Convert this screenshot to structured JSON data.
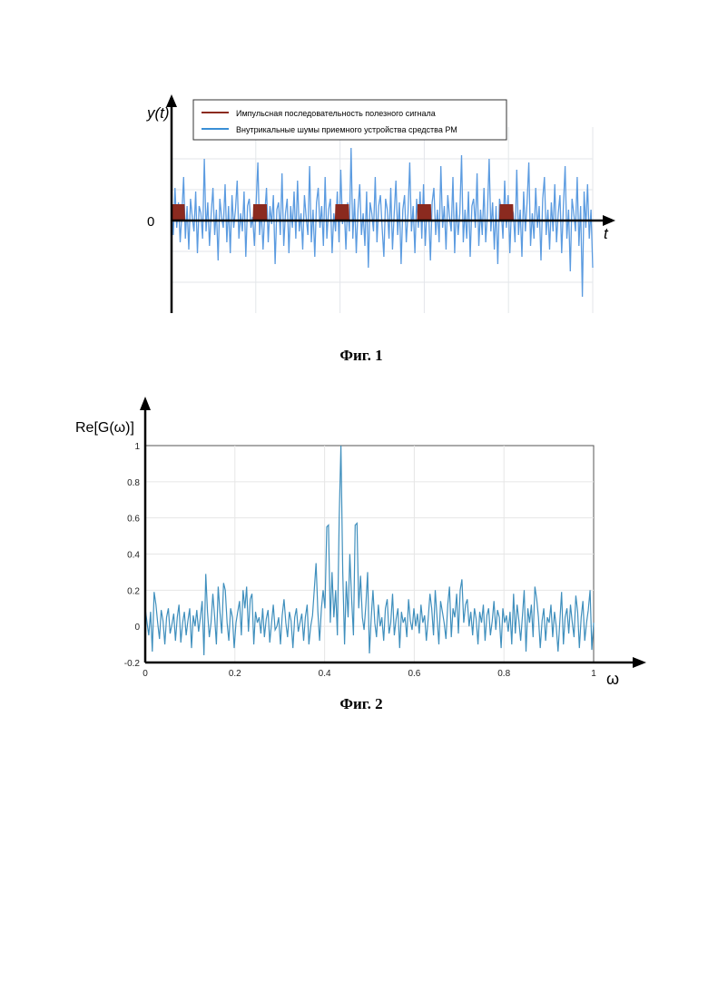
{
  "figure1": {
    "caption": "Фиг. 1",
    "y_axis_label": "y(t)",
    "x_axis_label": "t",
    "zero_label": "0",
    "legend": [
      {
        "label": "Импульсная последовательность полезного сигнала",
        "color": "#8b2a1f"
      },
      {
        "label": "Внутрикальные шумы приемного устройства средства РМ",
        "color": "#3a8fd6"
      }
    ]
  },
  "figure2": {
    "caption": "Фиг. 2",
    "y_axis_label": "Re[G(ω)]",
    "x_axis_label": "ω"
  },
  "chart_data": [
    {
      "type": "line",
      "title": "",
      "xlabel": "t",
      "ylabel": "y(t)",
      "grid": true,
      "legend_position": "top",
      "series": [
        {
          "name": "Внутрикальные шумы приемного устройства средства РМ",
          "color": "#5b9be0",
          "values": [
            0.3,
            -0.4,
            0.9,
            -0.2,
            0.5,
            -0.6,
            0.2,
            1.2,
            -0.5,
            0.4,
            -0.8,
            0.6,
            0.1,
            -0.3,
            0.8,
            -0.9,
            0.4,
            0.2,
            -0.5,
            1.7,
            -0.3,
            0.5,
            -0.7,
            0.2,
            0.9,
            -0.4,
            0.3,
            -1.1,
            0.6,
            0.1,
            -0.2,
            1.0,
            -0.6,
            0.4,
            -0.9,
            0.7,
            -0.2,
            0.3,
            1.1,
            -0.5,
            0.2,
            -0.3,
            0.8,
            -1.0,
            0.4,
            0.6,
            -0.2,
            0.1,
            -0.7,
            0.5,
            1.6,
            -0.4,
            0.3,
            -0.8,
            0.2,
            0.9,
            -0.6,
            0.4,
            -0.1,
            0.7,
            -1.2,
            0.3,
            0.5,
            -0.4,
            1.3,
            -0.7,
            0.2,
            0.6,
            -0.9,
            0.4,
            -0.2,
            0.8,
            -0.5,
            1.1,
            -0.3,
            0.2,
            -0.8,
            0.7,
            0.1,
            -0.4,
            1.5,
            -0.6,
            0.3,
            -1.0,
            0.5,
            0.9,
            -0.2,
            0.4,
            -0.7,
            1.2,
            -0.5,
            0.3,
            0.6,
            -0.9,
            0.2,
            -0.3,
            0.8,
            -0.6,
            1.4,
            -0.1,
            0.4,
            -0.8,
            0.5,
            -0.3,
            2.0,
            -0.5,
            0.6,
            -0.9,
            0.3,
            1.0,
            -0.4,
            0.2,
            -0.7,
            0.8,
            -1.3,
            0.5,
            0.2,
            -0.3,
            1.2,
            -0.6,
            0.4,
            0.7,
            -0.2,
            -1.0,
            0.6,
            0.3,
            -0.5,
            0.9,
            -0.8,
            0.2,
            1.1,
            -0.4,
            0.5,
            -1.2,
            0.3,
            0.7,
            -0.6,
            0.2,
            1.6,
            -0.3,
            0.4,
            -0.9,
            0.6,
            -0.2,
            0.8,
            -0.5,
            1.0,
            -0.7,
            0.3,
            0.2,
            -1.1,
            0.5,
            0.9,
            -0.4,
            0.3,
            -0.6,
            1.5,
            -0.2,
            0.4,
            -0.8,
            0.7,
            0.1,
            -0.3,
            1.2,
            -0.9,
            0.5,
            -0.4,
            0.2,
            1.8,
            -0.6,
            0.3,
            -0.5,
            0.8,
            -1.0,
            0.4,
            0.6,
            -0.2,
            1.3,
            -0.7,
            0.3,
            -0.4,
            0.9,
            -0.6,
            0.2,
            1.7,
            -0.3,
            0.5,
            -0.8,
            0.4,
            -1.2,
            0.6,
            0.3,
            -0.5,
            1.1,
            -0.2,
            0.7,
            -0.9,
            0.4,
            0.2,
            -0.6,
            1.4,
            -0.4,
            0.3,
            -1.0,
            0.8,
            -0.3,
            0.5,
            1.6,
            -0.7,
            0.2,
            -0.5,
            0.9,
            -0.2,
            0.4,
            -1.1,
            0.6,
            1.2,
            -0.4,
            0.3,
            -0.8,
            0.5,
            -0.3,
            1.0,
            -0.6,
            0.2,
            0.7,
            -0.9,
            0.4,
            1.5,
            -0.5,
            0.3,
            -1.4,
            0.6,
            0.2,
            -0.3,
            1.2,
            -0.7,
            0.4,
            -2.1,
            0.8,
            -0.2,
            1.0,
            -0.5,
            0.3,
            -1.3
          ]
        },
        {
          "name": "Импульсная последовательность полезного сигнала",
          "color": "#8b2a1f",
          "pulse_centers": [
            0.015,
            0.21,
            0.405,
            0.6,
            0.795
          ],
          "amplitude": 0.45
        }
      ]
    },
    {
      "type": "line",
      "title": "",
      "xlabel": "ω",
      "ylabel": "Re[G(ω)]",
      "xlim": [
        0,
        1
      ],
      "ylim": [
        -0.2,
        1
      ],
      "x_ticks": [
        "0",
        "0.2",
        "0.4",
        "0.6",
        "0.8",
        "1"
      ],
      "y_ticks": [
        "-0.2",
        "0",
        "0.2",
        "0.4",
        "0.6",
        "0.8",
        "1"
      ],
      "grid": true,
      "series": [
        {
          "color": "#3f8fbd",
          "values": [
            0.1,
            0.02,
            -0.05,
            0.08,
            -0.14,
            0.19,
            0.12,
            0.02,
            -0.07,
            0.09,
            0.03,
            -0.1,
            0.05,
            0.1,
            -0.04,
            0.01,
            0.07,
            -0.08,
            0.05,
            0.12,
            -0.09,
            0.02,
            0.08,
            -0.05,
            0.03,
            0.1,
            -0.12,
            0.06,
            0.0,
            0.09,
            -0.03,
            0.05,
            0.14,
            -0.16,
            0.29,
            0.08,
            -0.06,
            0.02,
            0.18,
            0.05,
            -0.1,
            0.22,
            0.08,
            -0.04,
            0.24,
            0.2,
            0.02,
            -0.08,
            0.1,
            0.05,
            -0.12,
            0.02,
            0.08,
            0.14,
            -0.05,
            0.2,
            0.1,
            0.22,
            -0.03,
            0.15,
            0.18,
            -0.1,
            0.08,
            0.02,
            0.05,
            -0.04,
            0.1,
            -0.06,
            0.04,
            0.09,
            -0.09,
            0.02,
            0.12,
            -0.02,
            0.0,
            0.05,
            -0.1,
            0.06,
            0.15,
            0.02,
            -0.06,
            0.08,
            0.03,
            -0.12,
            0.05,
            0.1,
            -0.03,
            0.02,
            0.07,
            -0.08,
            0.05,
            0.12,
            -0.1,
            0.0,
            0.06,
            0.2,
            0.35,
            0.08,
            -0.08,
            0.1,
            0.2,
            0.1,
            0.55,
            0.56,
            0.02,
            0.3,
            0.05,
            0.2,
            -0.05,
            0.6,
            1.0,
            0.3,
            -0.1,
            0.25,
            0.05,
            0.4,
            0.15,
            -0.05,
            0.56,
            0.57,
            0.1,
            0.28,
            0.05,
            -0.02,
            0.12,
            0.3,
            -0.15,
            0.05,
            0.2,
            0.02,
            -0.06,
            0.12,
            0.0,
            0.05,
            -0.08,
            0.1,
            0.15,
            -0.04,
            0.02,
            0.18,
            -0.05,
            0.04,
            0.1,
            -0.12,
            0.08,
            0.02,
            0.05,
            -0.06,
            0.15,
            0.03,
            -0.02,
            0.1,
            0.0,
            0.07,
            -0.04,
            0.12,
            0.02,
            0.06,
            -0.08,
            0.04,
            0.18,
            0.1,
            -0.05,
            0.2,
            0.05,
            -0.1,
            0.14,
            0.08,
            0.02,
            -0.07,
            0.12,
            0.22,
            -0.06,
            0.1,
            0.05,
            0.18,
            -0.04,
            0.2,
            0.26,
            0.02,
            0.12,
            0.15,
            0.0,
            0.08,
            -0.05,
            0.1,
            0.04,
            -0.1,
            0.08,
            0.02,
            0.12,
            -0.08,
            0.06,
            0.1,
            -0.05,
            0.03,
            0.14,
            -0.02,
            0.09,
            0.05,
            -0.12,
            0.1,
            0.02,
            0.06,
            -0.03,
            0.08,
            -0.1,
            0.18,
            -0.04,
            0.12,
            0.03,
            -0.08,
            0.06,
            0.2,
            -0.14,
            0.1,
            0.02,
            0.12,
            -0.06,
            0.22,
            0.15,
            0.05,
            -0.12,
            0.03,
            0.1,
            -0.08,
            0.05,
            0.02,
            0.12,
            -0.06,
            0.08,
            0.0,
            -0.14,
            0.03,
            0.19,
            -0.1,
            0.05,
            0.1,
            -0.04,
            0.12,
            0.02,
            -0.06,
            0.17,
            0.08,
            -0.12,
            0.05,
            0.14,
            -0.08,
            0.02,
            0.09,
            0.2,
            -0.13,
            0.02
          ]
        }
      ]
    }
  ]
}
